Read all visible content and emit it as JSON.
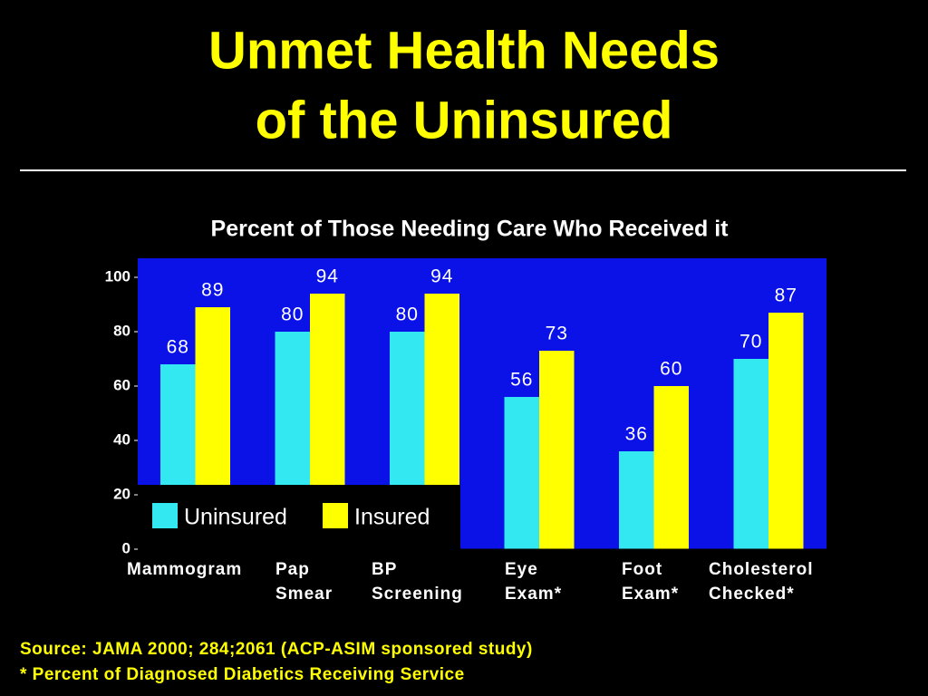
{
  "chart_data": {
    "type": "bar",
    "title": [
      "Unmet Health Needs",
      "of the Uninsured"
    ],
    "subtitle": "Percent of Those Needing Care Who Received it",
    "categories": [
      [
        "Mammogram"
      ],
      [
        "Pap",
        "Smear"
      ],
      [
        "BP",
        "Screening"
      ],
      [
        "Eye",
        "Exam*"
      ],
      [
        "Foot",
        "Exam*"
      ],
      [
        "Cholesterol",
        "Checked*"
      ]
    ],
    "series": [
      {
        "name": "Uninsured",
        "color": "#33e8f0",
        "values": [
          68,
          80,
          80,
          56,
          36,
          70
        ]
      },
      {
        "name": "Insured",
        "color": "#ffff00",
        "values": [
          89,
          94,
          94,
          73,
          60,
          87
        ]
      }
    ],
    "ylim": [
      0,
      107
    ],
    "yticks": [
      0,
      20,
      40,
      60,
      80,
      100
    ],
    "plot_color": "#0a12e8",
    "legend": "lower left",
    "notes": [
      "Source: JAMA 2000; 284;2061 (ACP-ASIM sponsored study)",
      "* Percent of Diagnosed Diabetics Receiving Service"
    ]
  }
}
